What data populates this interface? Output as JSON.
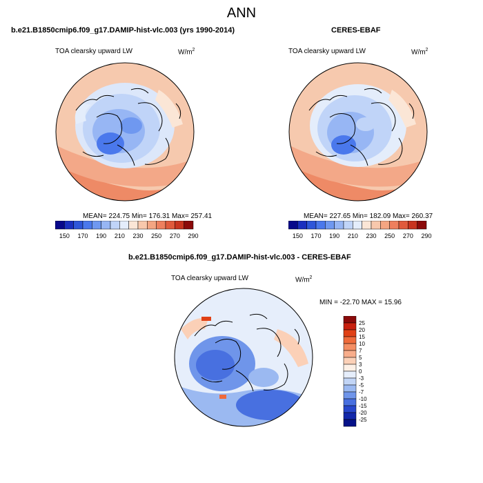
{
  "title": "ANN",
  "panels": [
    {
      "header": "b.e21.B1850cmip6.f09_g17.DAMIP-hist-vlc.003 (yrs 1990-2014)",
      "variable": "TOA clearsky upward LW",
      "units_base": "W/m",
      "units_exp": "2",
      "stats": "MEAN= 224.75  Min= 176.31  Max= 257.41"
    },
    {
      "header": "CERES-EBAF",
      "variable": "TOA clearsky upward LW",
      "units_base": "W/m",
      "units_exp": "2",
      "stats": "MEAN= 227.65  Min= 182.09  Max= 260.37"
    },
    {
      "header": "b.e21.B1850cmip6.f09_g17.DAMIP-hist-vlc.003 - CERES-EBAF",
      "variable": "TOA clearsky upward LW",
      "units_base": "W/m",
      "units_exp": "2",
      "stats": "MIN = -22.70 MAX =  15.96"
    }
  ],
  "abs_colorbar": {
    "labels": [
      "150",
      "170",
      "190",
      "210",
      "230",
      "250",
      "270",
      "290"
    ],
    "colors": [
      "#08088a",
      "#1a2fbf",
      "#2e56d9",
      "#4a78ec",
      "#6f98f0",
      "#97b6f4",
      "#c0d4f8",
      "#e4edfb",
      "#fbe6d6",
      "#f8c8ac",
      "#f4a582",
      "#ee7f5e",
      "#e05a3c",
      "#c8341f",
      "#8b0a0a"
    ]
  },
  "diff_colorbar": {
    "labels": [
      "25",
      "20",
      "15",
      "10",
      "7",
      "5",
      "3",
      "0",
      "-3",
      "-5",
      "-7",
      "-10",
      "-15",
      "-20",
      "-25"
    ],
    "colors": [
      "#8b0a0a",
      "#c8200f",
      "#e04015",
      "#ef6a3a",
      "#f48e63",
      "#f8ad8b",
      "#fbd0b7",
      "#fdf0e6",
      "#e6eefb",
      "#c2d5f6",
      "#9bb9f1",
      "#6f95ea",
      "#4870e0",
      "#2747cc",
      "#1228aa",
      "#061289"
    ]
  }
}
